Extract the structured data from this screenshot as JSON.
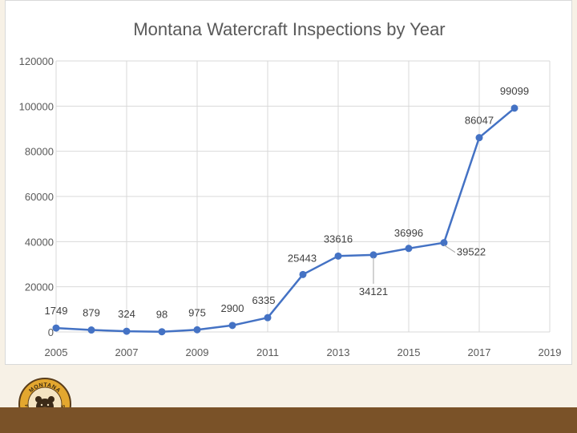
{
  "chart_data": {
    "type": "line",
    "title": "Montana Watercraft Inspections by Year",
    "xlabel": "",
    "ylabel": "",
    "x": [
      2005,
      2006,
      2007,
      2008,
      2009,
      2010,
      2011,
      2012,
      2013,
      2014,
      2015,
      2016,
      2017,
      2018
    ],
    "values": [
      1749,
      879,
      324,
      98,
      975,
      2900,
      6335,
      25443,
      33616,
      34121,
      36996,
      39522,
      86047,
      99099
    ],
    "data_labels": [
      "1749",
      "879",
      "324",
      "98",
      "975",
      "2900",
      "6335",
      "25443",
      "33616",
      "34121",
      "36996",
      "39522",
      "86047",
      "99099"
    ],
    "xlim": [
      2005,
      2019
    ],
    "ylim": [
      0,
      120000
    ],
    "x_ticks": [
      "2005",
      "2007",
      "2009",
      "2011",
      "2013",
      "2015",
      "2017",
      "2019"
    ],
    "y_ticks": [
      "0",
      "20000",
      "40000",
      "60000",
      "80000",
      "100000",
      "120000"
    ],
    "grid": true,
    "series_color": "#4472c4"
  },
  "logo": {
    "name": "Montana Fish Wildlife & Parks",
    "text_top": "MONTANA",
    "text_bottom": "FISH WILDLIFE & PARKS"
  },
  "colors": {
    "footer": "#7a5228",
    "background": "#f7f1e6",
    "logo_ring": "#e3a72f"
  }
}
